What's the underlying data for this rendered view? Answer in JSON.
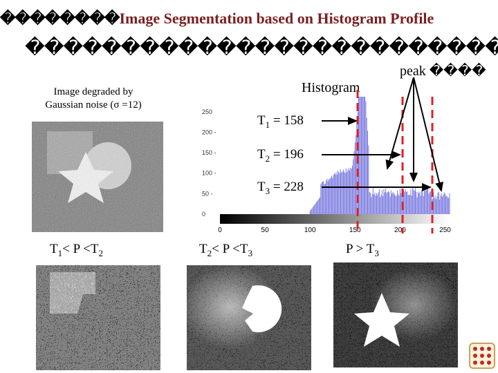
{
  "slide": {
    "title_garbled": "��������",
    "title": "Image Segmentation based on Histogram Profile",
    "subtitle_garbled": "����������������������������������"
  },
  "original": {
    "caption_line1": "Image degraded by",
    "caption_line2": "Gaussian noise (σ =12)"
  },
  "histogram": {
    "title": "Histogram",
    "peak_label": "peak ����",
    "y_ticks": [
      "250",
      "200 -",
      "150 -",
      "100 -",
      "50 -",
      "0"
    ],
    "x_ticks": [
      "0",
      "50",
      "100",
      "150",
      "200",
      "250"
    ],
    "thresholds": [
      {
        "name": "T",
        "sub": "1",
        "text": " = 158",
        "value": 158
      },
      {
        "name": "T",
        "sub": "2",
        "text": " = 196",
        "value": 196
      },
      {
        "name": "T",
        "sub": "3",
        "text": " = 228",
        "value": 228
      }
    ]
  },
  "results": [
    {
      "pre": "T",
      "sub1": "1",
      "mid": "< P <T",
      "sub2": "2"
    },
    {
      "pre": "T",
      "sub1": "2",
      "mid": "< P <T",
      "sub2": "3"
    },
    {
      "pre": "P > T",
      "sub1": "",
      "mid": "",
      "sub2": "3"
    }
  ],
  "colors": {
    "title": "#7a1f1f",
    "histogram_bar": "#7a7ae0",
    "threshold_line": "#d8222a",
    "badge_dot": "#c0282a"
  }
}
